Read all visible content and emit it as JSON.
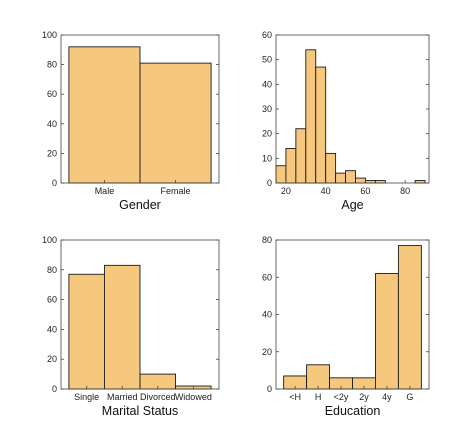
{
  "chart_data": [
    {
      "type": "bar",
      "xlabel": "Gender",
      "categories": [
        "Male",
        "Female"
      ],
      "values": [
        92,
        81
      ],
      "ylim": [
        0,
        100
      ],
      "yticks": [
        0,
        20,
        40,
        60,
        80,
        100
      ],
      "bar_color": "#f6c87d"
    },
    {
      "type": "histogram",
      "xlabel": "Age",
      "bin_edges": [
        15,
        20,
        25,
        30,
        35,
        40,
        45,
        50,
        55,
        60,
        65,
        70,
        75,
        80,
        85,
        90
      ],
      "values": [
        7,
        14,
        22,
        54,
        47,
        12,
        4,
        5,
        2,
        1,
        1,
        0,
        0,
        0,
        1
      ],
      "xlim": [
        15,
        92
      ],
      "ylim": [
        0,
        60
      ],
      "xticks": [
        20,
        40,
        60,
        80
      ],
      "yticks": [
        0,
        10,
        20,
        30,
        40,
        50,
        60
      ],
      "bar_color": "#f6c87d"
    },
    {
      "type": "bar",
      "xlabel": "Marital Status",
      "categories": [
        "Single",
        "Married",
        "Divorced",
        "Widowed"
      ],
      "values": [
        77,
        83,
        10,
        2
      ],
      "ylim": [
        0,
        100
      ],
      "yticks": [
        0,
        20,
        40,
        60,
        80,
        100
      ],
      "bar_color": "#f6c87d"
    },
    {
      "type": "bar",
      "xlabel": "Education",
      "categories": [
        "<H",
        "H",
        "<2y",
        "2y",
        "4y",
        "G"
      ],
      "values": [
        7,
        13,
        6,
        6,
        62,
        77
      ],
      "ylim": [
        0,
        80
      ],
      "yticks": [
        0,
        20,
        40,
        60,
        80
      ],
      "bar_color": "#f6c87d"
    }
  ]
}
